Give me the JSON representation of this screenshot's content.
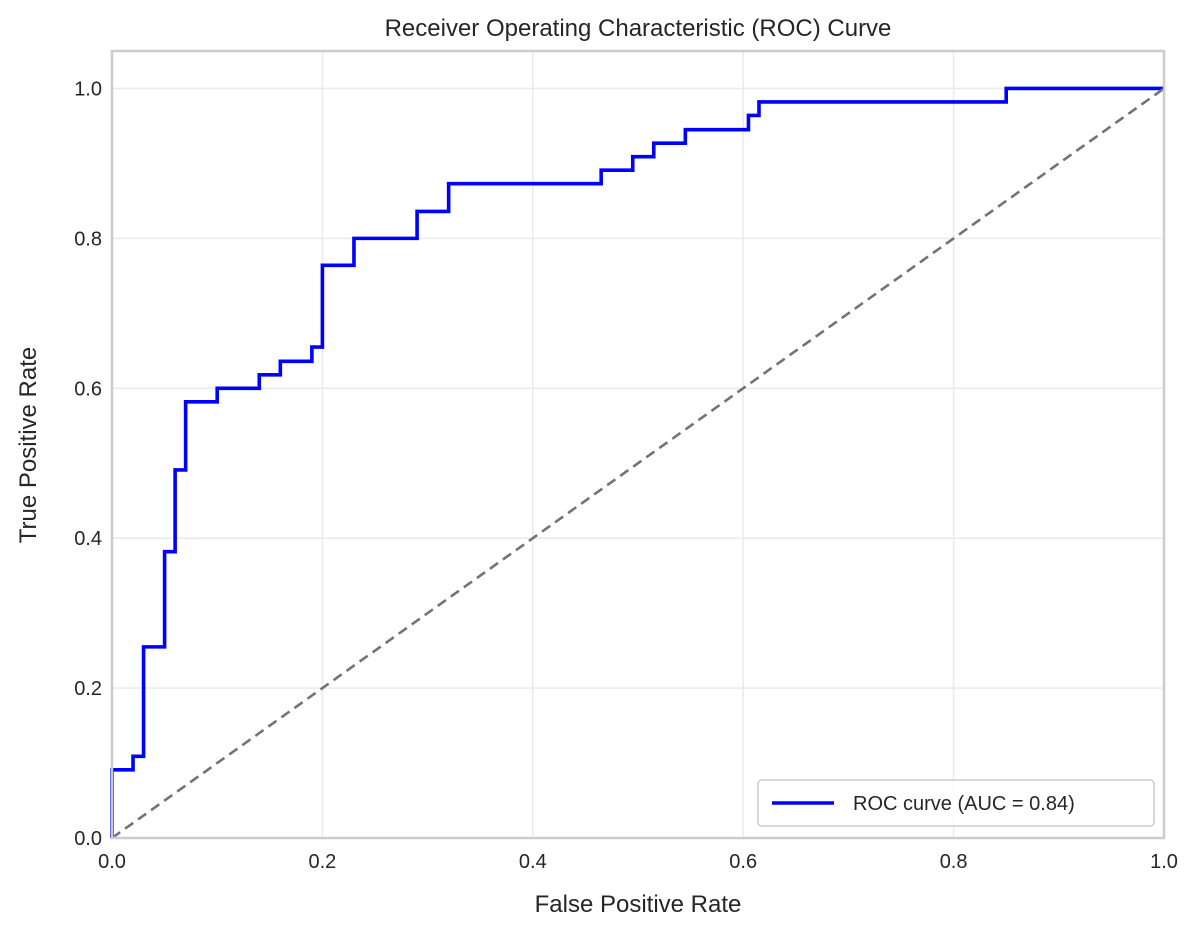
{
  "chart_data": {
    "type": "line",
    "title": "Receiver Operating Characteristic (ROC) Curve",
    "xlabel": "False Positive Rate",
    "ylabel": "True Positive Rate",
    "xlim": [
      0.0,
      1.0
    ],
    "ylim": [
      0.0,
      1.05
    ],
    "xticks": [
      0.0,
      0.2,
      0.4,
      0.6,
      0.8,
      1.0
    ],
    "xtick_labels": [
      "0.0",
      "0.2",
      "0.4",
      "0.6",
      "0.8",
      "1.0"
    ],
    "yticks": [
      0.0,
      0.2,
      0.4,
      0.6,
      0.8,
      1.0
    ],
    "ytick_labels": [
      "0.0",
      "0.2",
      "0.4",
      "0.6",
      "0.8",
      "1.0"
    ],
    "grid": true,
    "legend": {
      "location": "lower-right",
      "entries": [
        "ROC curve (AUC = 0.84)"
      ]
    },
    "series": [
      {
        "name": "ROC curve (AUC = 0.84)",
        "color": "#0000ff",
        "style": "solid",
        "step": "post",
        "x": [
          0.0,
          0.0,
          0.02,
          0.02,
          0.03,
          0.03,
          0.05,
          0.05,
          0.06,
          0.06,
          0.07,
          0.07,
          0.1,
          0.1,
          0.14,
          0.14,
          0.16,
          0.16,
          0.19,
          0.19,
          0.2,
          0.2,
          0.23,
          0.23,
          0.29,
          0.29,
          0.32,
          0.32,
          0.465,
          0.465,
          0.495,
          0.495,
          0.515,
          0.515,
          0.545,
          0.545,
          0.605,
          0.605,
          0.615,
          0.615,
          0.85,
          0.85,
          1.0
        ],
        "y": [
          0.0,
          0.091,
          0.091,
          0.109,
          0.109,
          0.255,
          0.255,
          0.382,
          0.382,
          0.491,
          0.491,
          0.582,
          0.582,
          0.6,
          0.6,
          0.618,
          0.618,
          0.636,
          0.636,
          0.655,
          0.655,
          0.764,
          0.764,
          0.8,
          0.8,
          0.836,
          0.836,
          0.873,
          0.873,
          0.891,
          0.891,
          0.909,
          0.909,
          0.927,
          0.927,
          0.945,
          0.945,
          0.964,
          0.964,
          0.982,
          0.982,
          1.0,
          1.0
        ]
      },
      {
        "color": "#737373",
        "style": "dashed",
        "x": [
          0.0,
          1.0
        ],
        "y": [
          0.0,
          1.0
        ]
      }
    ]
  }
}
